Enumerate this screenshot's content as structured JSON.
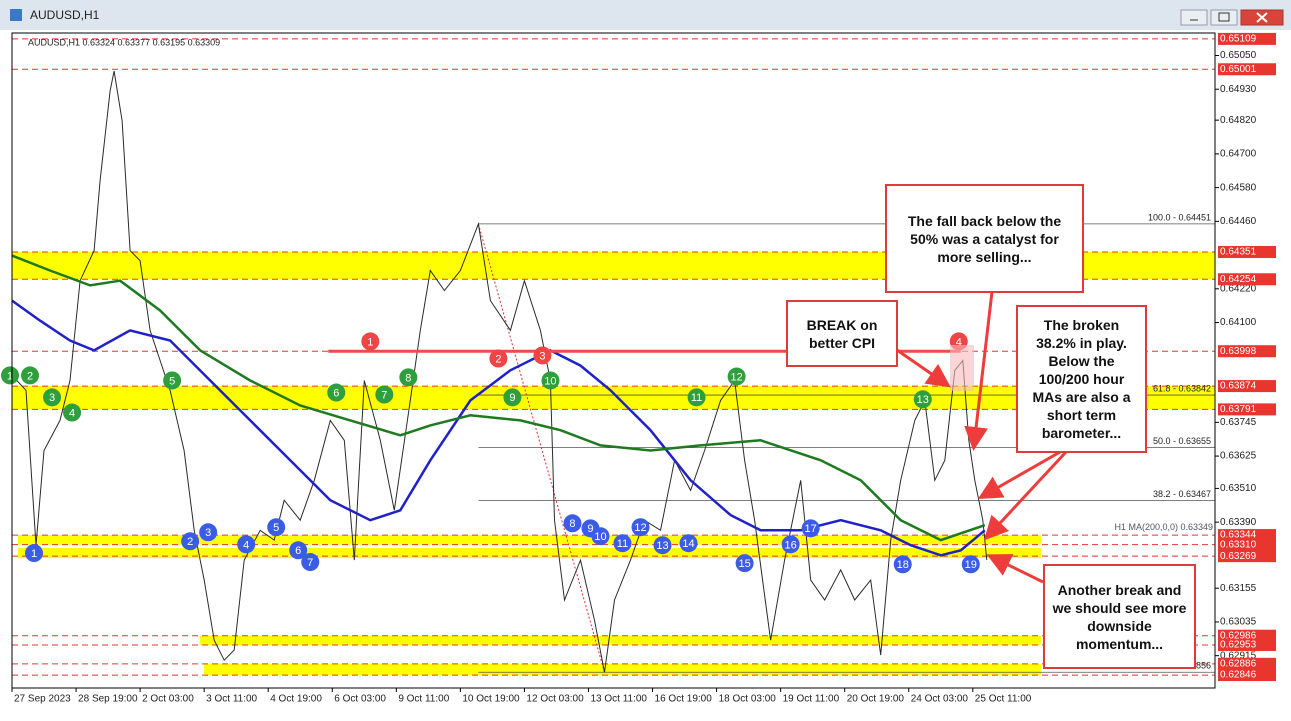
{
  "window": {
    "title": "AUDUSD,H1"
  },
  "chart_data": {
    "type": "line",
    "info": "AUDUSD,H1  0.63324 0.63377 0.63195 0.63309",
    "xlim": [
      0,
      601
    ],
    "ylim": [
      0.628,
      0.6513
    ],
    "xticks": [
      {
        "value": 0,
        "label": "27 Sep 2023"
      },
      {
        "value": 32,
        "label": "28 Sep 19:00"
      },
      {
        "value": 64,
        "label": "2 Oct 03:00"
      },
      {
        "value": 96,
        "label": "3 Oct 11:00"
      },
      {
        "value": 128,
        "label": "4 Oct 19:00"
      },
      {
        "value": 160,
        "label": "6 Oct 03:00"
      },
      {
        "value": 192,
        "label": "9 Oct 11:00"
      },
      {
        "value": 224,
        "label": "10 Oct 19:00"
      },
      {
        "value": 256,
        "label": "12 Oct 03:00"
      },
      {
        "value": 288,
        "label": "13 Oct 11:00"
      },
      {
        "value": 320,
        "label": "16 Oct 19:00"
      },
      {
        "value": 352,
        "label": "18 Oct 03:00"
      },
      {
        "value": 384,
        "label": "19 Oct 11:00"
      },
      {
        "value": 416,
        "label": "20 Oct 19:00"
      },
      {
        "value": 448,
        "label": "24 Oct 03:00"
      },
      {
        "value": 480,
        "label": "25 Oct 11:00"
      }
    ],
    "yticks": [
      {
        "value": 0.6505,
        "label": "0.65050"
      },
      {
        "value": 0.6493,
        "label": "0.64930"
      },
      {
        "value": 0.6482,
        "label": "0.64820"
      },
      {
        "value": 0.647,
        "label": "0.64700"
      },
      {
        "value": 0.6458,
        "label": "0.64580"
      },
      {
        "value": 0.6446,
        "label": "0.64460"
      },
      {
        "value": 0.6422,
        "label": "0.64220"
      },
      {
        "value": 0.641,
        "label": "0.64100"
      },
      {
        "value": 0.63745,
        "label": "0.63745"
      },
      {
        "value": 0.63625,
        "label": "0.63625"
      },
      {
        "value": 0.6351,
        "label": "0.63510"
      },
      {
        "value": 0.6339,
        "label": "0.63390"
      },
      {
        "value": 0.63155,
        "label": "0.63155"
      },
      {
        "value": 0.63035,
        "label": "0.63035"
      },
      {
        "value": 0.62915,
        "label": "0.62915"
      }
    ],
    "levels": {
      "color": "#e8352e",
      "ticks": [
        {
          "value": 0.65109,
          "label": "0.65109"
        },
        {
          "value": 0.65001,
          "label": "0.65001"
        },
        {
          "value": 0.64351,
          "label": "0.64351"
        },
        {
          "value": 0.64254,
          "label": "0.64254"
        },
        {
          "value": 0.63998,
          "label": "0.63998"
        },
        {
          "value": 0.63874,
          "label": "0.63874"
        },
        {
          "value": 0.63791,
          "label": "0.63791"
        },
        {
          "value": 0.63344,
          "label": "0.63344"
        },
        {
          "value": 0.6331,
          "label": "0.63310"
        },
        {
          "value": 0.63269,
          "label": "0.63269"
        },
        {
          "value": 0.62986,
          "label": "0.62986"
        },
        {
          "value": 0.62953,
          "label": "0.62953"
        },
        {
          "value": 0.62886,
          "label": "0.62886"
        },
        {
          "value": 0.62846,
          "label": "0.62846"
        }
      ]
    },
    "zones": {
      "color": "#ffff00",
      "items": [
        {
          "range": [
            0.64254,
            0.64351
          ],
          "x": [
            0,
            601
          ]
        },
        {
          "range": [
            0.63791,
            0.63874
          ],
          "x": [
            0,
            601
          ]
        },
        {
          "range": [
            0.6331,
            0.63344
          ],
          "x": [
            3,
            514
          ]
        },
        {
          "range": [
            0.63262,
            0.63298
          ],
          "x": [
            3,
            514
          ]
        },
        {
          "range": [
            0.62953,
            0.62986
          ],
          "x": [
            94,
            514
          ]
        },
        {
          "range": [
            0.62846,
            0.62886
          ],
          "x": [
            96,
            514
          ]
        }
      ]
    },
    "series": [
      {
        "color": "#2a2a2a",
        "x": [
          0,
          7,
          12,
          16,
          24,
          29,
          34,
          41,
          44,
          49,
          51,
          55,
          59,
          64,
          69,
          74,
          79,
          86,
          91,
          96,
          101,
          106,
          111,
          116,
          124,
          131,
          136,
          144,
          151,
          159,
          166,
          171,
          176,
          184,
          191,
          199,
          204,
          209,
          216,
          224,
          233,
          239,
          249,
          256,
          264,
          269,
          271,
          276,
          284,
          291,
          296,
          301,
          309,
          316,
          324,
          331,
          339,
          346,
          354,
          361,
          366,
          371,
          379,
          386,
          394,
          399,
          406,
          414,
          421,
          429,
          434,
          439,
          444,
          451,
          456,
          461,
          466,
          471,
          475,
          478,
          481,
          485,
          487
        ],
        "values": [
          0.63912,
          0.63859,
          0.63308,
          0.63645,
          0.63752,
          0.63894,
          0.64249,
          0.64356,
          0.64605,
          0.64924,
          0.64995,
          0.64818,
          0.64356,
          0.6432,
          0.64072,
          0.63965,
          0.63859,
          0.63645,
          0.63361,
          0.63184,
          0.6297,
          0.62899,
          0.62935,
          0.63255,
          0.63361,
          0.63326,
          0.63468,
          0.63397,
          0.63539,
          0.63752,
          0.63681,
          0.63255,
          0.63894,
          0.63681,
          0.63432,
          0.63823,
          0.64072,
          0.64285,
          0.64214,
          0.64285,
          0.64451,
          0.64178,
          0.64072,
          0.64249,
          0.64072,
          0.63894,
          0.63397,
          0.63113,
          0.63255,
          0.63041,
          0.62856,
          0.63113,
          0.63255,
          0.63397,
          0.63361,
          0.6361,
          0.63503,
          0.63645,
          0.63823,
          0.63894,
          0.6361,
          0.63397,
          0.6297,
          0.63255,
          0.63539,
          0.63184,
          0.63113,
          0.6322,
          0.63113,
          0.63184,
          0.62917,
          0.63326,
          0.63539,
          0.63752,
          0.63823,
          0.63539,
          0.6361,
          0.6393,
          0.63965,
          0.63681,
          0.63539,
          0.63397,
          0.63255
        ]
      },
      {
        "color": "#1f22c8",
        "x": [
          0,
          14,
          29,
          41,
          59,
          79,
          99,
          119,
          139,
          159,
          179,
          194,
          209,
          229,
          249,
          269,
          284,
          299,
          319,
          339,
          359,
          374,
          394,
          414,
          434,
          449,
          464,
          474,
          486
        ],
        "values": [
          0.64178,
          0.64107,
          0.64036,
          0.64001,
          0.64072,
          0.64036,
          0.63894,
          0.63752,
          0.6361,
          0.63468,
          0.63397,
          0.63432,
          0.6361,
          0.63823,
          0.6393,
          0.64001,
          0.63947,
          0.63859,
          0.63717,
          0.63539,
          0.63415,
          0.63361,
          0.63361,
          0.63397,
          0.63361,
          0.63308,
          0.63272,
          0.6329,
          0.63361
        ]
      },
      {
        "color": "#1e7a1e",
        "x": [
          0,
          19,
          39,
          54,
          74,
          94,
          119,
          144,
          169,
          194,
          209,
          229,
          254,
          274,
          294,
          319,
          344,
          374,
          404,
          424,
          444,
          464,
          486
        ],
        "values": [
          0.64338,
          0.64285,
          0.64232,
          0.64249,
          0.64143,
          0.64001,
          0.63894,
          0.63805,
          0.63752,
          0.63699,
          0.63734,
          0.6377,
          0.63752,
          0.63717,
          0.63663,
          0.63645,
          0.63663,
          0.63681,
          0.6361,
          0.63539,
          0.63397,
          0.63326,
          0.63379
        ]
      }
    ],
    "ma_label": "H1 MA(200,0,0) 0.63349",
    "break_line": {
      "value": 0.63998,
      "x": [
        158,
        474
      ],
      "color": "#f04a4a"
    },
    "fib": {
      "from": [
        233,
        0.64451
      ],
      "to": [
        296,
        0.62856
      ],
      "levels": [
        {
          "value": 0.64451,
          "label": "100.0 - 0.64451"
        },
        {
          "value": 0.63842,
          "label": "61.8 - 0.63842"
        },
        {
          "value": 0.63655,
          "label": "50.0 - 0.63655"
        },
        {
          "value": 0.63467,
          "label": "38.2 - 0.63467"
        },
        {
          "value": 0.62856,
          "label": "0.62856"
        }
      ]
    },
    "markers": [
      {
        "color": "#2f9e3c",
        "points": [
          {
            "label": "1",
            "x": -1,
            "y": 0.63912
          },
          {
            "label": "2",
            "x": 9,
            "y": 0.63912
          },
          {
            "label": "3",
            "x": 20,
            "y": 0.63834
          },
          {
            "label": "4",
            "x": 30,
            "y": 0.6378
          },
          {
            "label": "5",
            "x": 80,
            "y": 0.63894
          },
          {
            "label": "6",
            "x": 162,
            "y": 0.63851
          },
          {
            "label": "7",
            "x": 186,
            "y": 0.63844
          },
          {
            "label": "8",
            "x": 198,
            "y": 0.63905
          },
          {
            "label": "9",
            "x": 250,
            "y": 0.63834
          },
          {
            "label": "10",
            "x": 269,
            "y": 0.63894
          },
          {
            "label": "11",
            "x": 342,
            "y": 0.63834
          },
          {
            "label": "12",
            "x": 362,
            "y": 0.63908
          },
          {
            "label": "13",
            "x": 455,
            "y": 0.63827
          }
        ]
      },
      {
        "color": "#3b5de6",
        "points": [
          {
            "label": "1",
            "x": 11,
            "y": 0.6328
          },
          {
            "label": "2",
            "x": 89,
            "y": 0.63322
          },
          {
            "label": "3",
            "x": 98,
            "y": 0.63354
          },
          {
            "label": "4",
            "x": 117,
            "y": 0.63311
          },
          {
            "label": "5",
            "x": 132,
            "y": 0.63372
          },
          {
            "label": "6",
            "x": 143,
            "y": 0.6329
          },
          {
            "label": "7",
            "x": 149,
            "y": 0.63248
          },
          {
            "label": "8",
            "x": 280,
            "y": 0.63386
          },
          {
            "label": "9",
            "x": 289,
            "y": 0.63368
          },
          {
            "label": "10",
            "x": 294,
            "y": 0.6334
          },
          {
            "label": "11",
            "x": 305,
            "y": 0.63315
          },
          {
            "label": "12",
            "x": 314,
            "y": 0.63372
          },
          {
            "label": "13",
            "x": 325,
            "y": 0.63308
          },
          {
            "label": "14",
            "x": 338,
            "y": 0.63315
          },
          {
            "label": "15",
            "x": 366,
            "y": 0.63244
          },
          {
            "label": "16",
            "x": 389,
            "y": 0.63311
          },
          {
            "label": "17",
            "x": 399,
            "y": 0.63368
          },
          {
            "label": "18",
            "x": 445,
            "y": 0.6324
          },
          {
            "label": "19",
            "x": 479,
            "y": 0.6324
          }
        ]
      },
      {
        "color": "#f04545",
        "points": [
          {
            "label": "1",
            "x": 179,
            "y": 0.64033
          },
          {
            "label": "2",
            "x": 243,
            "y": 0.63972
          },
          {
            "label": "3",
            "x": 265,
            "y": 0.63983
          },
          {
            "label": "4",
            "x": 473,
            "y": 0.64033
          }
        ]
      }
    ],
    "annotations": [
      "The fall back below the 50% was a catalyst for more selling...",
      "BREAK on better CPI",
      "The broken 38.2% in play. Below the 100/200 hour MAs are also a short term barometer...",
      "Another break and we should see more downside momentum..."
    ]
  }
}
